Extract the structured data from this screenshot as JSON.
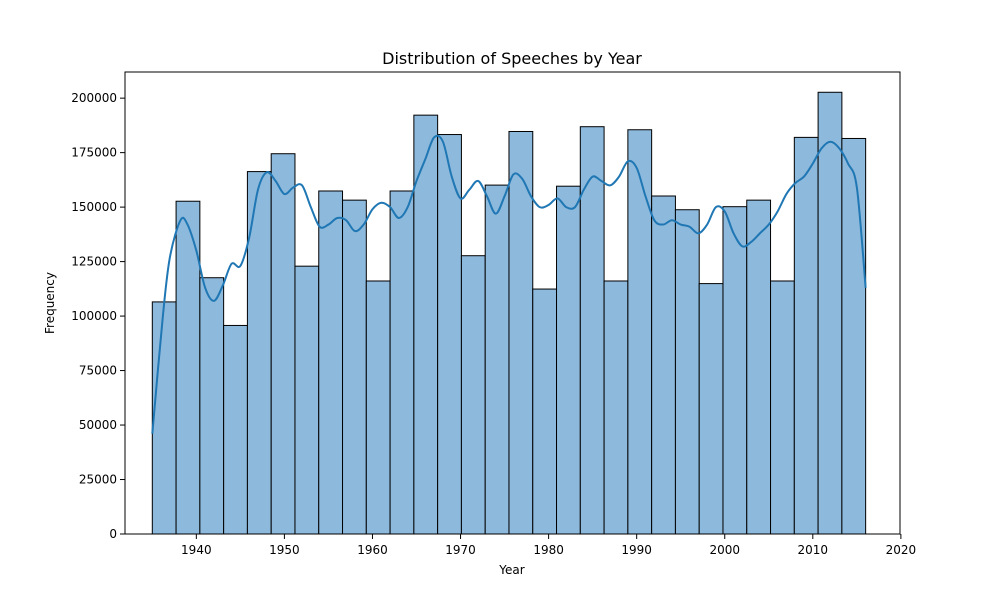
{
  "chart_data": {
    "type": "bar",
    "title": "Distribution of Speeches by Year",
    "xlabel": "Year",
    "ylabel": "Frequency",
    "xlim": [
      1931.9,
      2019.9
    ],
    "ylim": [
      0,
      212000
    ],
    "xticks": [
      1940,
      1950,
      1960,
      1970,
      1980,
      1990,
      2000,
      2010,
      2020
    ],
    "yticks": [
      0,
      25000,
      50000,
      75000,
      100000,
      125000,
      150000,
      175000,
      200000
    ],
    "bin_start": 1935,
    "bin_width": 2.7,
    "values": [
      106500,
      152700,
      117600,
      95700,
      166300,
      174500,
      122900,
      157400,
      153200,
      116100,
      157400,
      192200,
      183300,
      127700,
      160100,
      184700,
      112400,
      159600,
      186900,
      116100,
      185500,
      155100,
      148800,
      114900,
      150200,
      153200,
      116100,
      182000,
      202700,
      181500
    ],
    "kde": {
      "x": [
        1935,
        1936.2,
        1937,
        1938.2,
        1939,
        1940,
        1941,
        1942,
        1943,
        1944,
        1945,
        1946,
        1947,
        1948,
        1949,
        1950,
        1951,
        1952,
        1953,
        1954,
        1955,
        1956,
        1957,
        1958,
        1959,
        1960,
        1961,
        1962,
        1963,
        1964,
        1965,
        1966,
        1967,
        1968,
        1969,
        1970,
        1971,
        1972,
        1973,
        1974,
        1975,
        1976,
        1977,
        1978,
        1979,
        1980,
        1981,
        1982,
        1983,
        1984,
        1985,
        1986,
        1987,
        1988,
        1989,
        1990,
        1991,
        1992,
        1993,
        1994,
        1995,
        1996,
        1997,
        1998,
        1999,
        2000,
        2001,
        2002,
        2003,
        2004,
        2005,
        2006,
        2007,
        2008,
        2009,
        2010,
        2011,
        2012,
        2013,
        2014,
        2015,
        2016
      ],
      "y": [
        46000,
        100000,
        127000,
        144000,
        142000,
        130000,
        113000,
        107000,
        114000,
        124000,
        123000,
        136000,
        158000,
        166000,
        162000,
        156000,
        159000,
        160000,
        150000,
        141000,
        142000,
        145000,
        144000,
        139000,
        142000,
        149000,
        152000,
        150000,
        145000,
        150000,
        162000,
        172000,
        182000,
        180000,
        164000,
        154000,
        158000,
        162000,
        155000,
        147000,
        155000,
        165000,
        163000,
        155000,
        150000,
        151000,
        154000,
        150000,
        150000,
        158000,
        164000,
        162000,
        160000,
        164000,
        171000,
        168000,
        155000,
        144000,
        142000,
        144000,
        142000,
        141000,
        138000,
        142000,
        150000,
        148000,
        138000,
        132000,
        134000,
        138000,
        142000,
        148000,
        156000,
        161000,
        164000,
        170000,
        177000,
        180000,
        177000,
        170000,
        159000,
        113000
      ]
    }
  }
}
